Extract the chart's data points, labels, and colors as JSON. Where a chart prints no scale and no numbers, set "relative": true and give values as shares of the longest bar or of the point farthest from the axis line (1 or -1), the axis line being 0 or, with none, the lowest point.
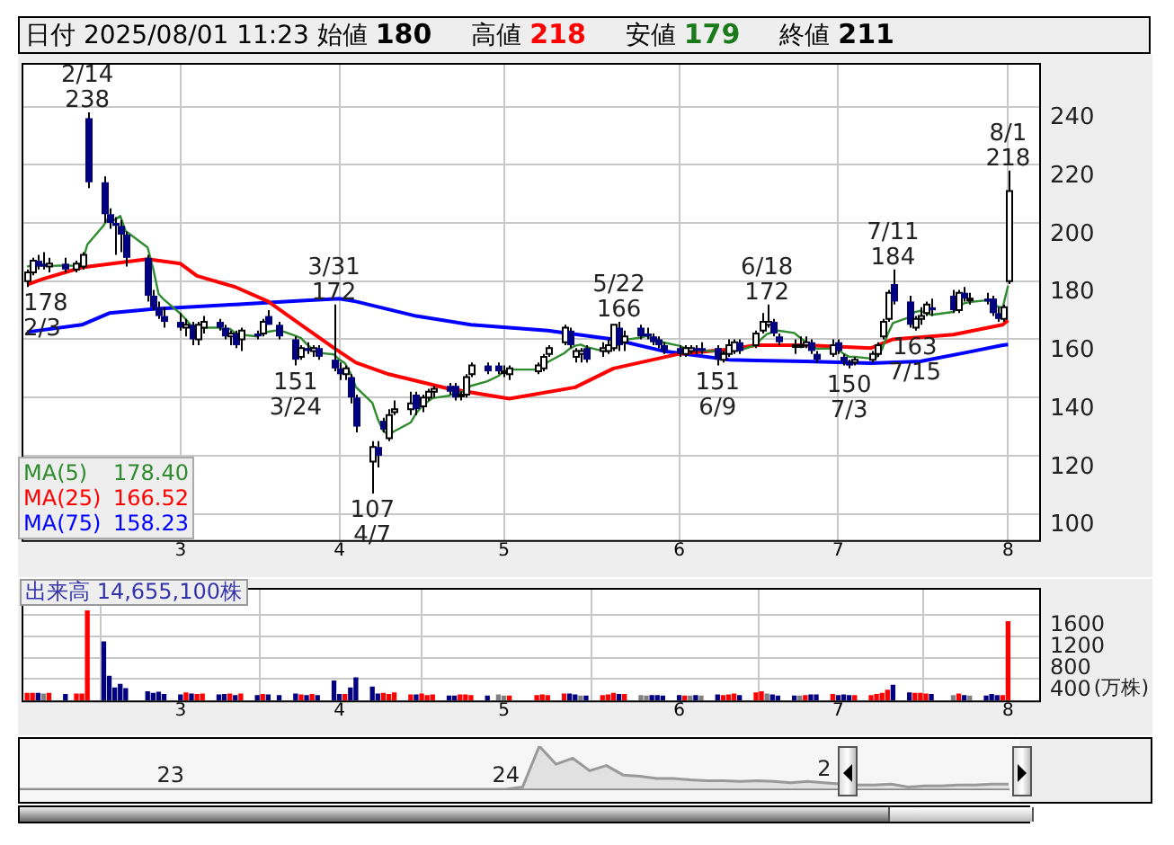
{
  "chart_data": [
    {
      "type": "candlestick",
      "title": "日付 2025/08/01 11:23",
      "annotations": [
        "始値 180",
        "高値 218",
        "安値 179",
        "終値 211",
        {
          "text": "178\n2/3",
          "x": "2025-02-03",
          "y": 178
        },
        {
          "text": "2/14\n238",
          "x": "2025-02-14",
          "y": 238
        },
        {
          "text": "151\n3/24",
          "x": "2025-03-24",
          "y": 151
        },
        {
          "text": "3/31\n172",
          "x": "2025-03-31",
          "y": 172
        },
        {
          "text": "107\n4/7",
          "x": "2025-04-07",
          "y": 107
        },
        {
          "text": "5/22\n166",
          "x": "2025-05-22",
          "y": 166
        },
        {
          "text": "151\n6/9",
          "x": "2025-06-09",
          "y": 151
        },
        {
          "text": "6/18\n172",
          "x": "2025-06-18",
          "y": 172
        },
        {
          "text": "150\n7/3",
          "x": "2025-07-03",
          "y": 150
        },
        {
          "text": "7/11\n184",
          "x": "2025-07-11",
          "y": 184
        },
        {
          "text": "163\n7/15",
          "x": "2025-07-15",
          "y": 163
        },
        {
          "text": "8/1\n218",
          "x": "2025-08-01",
          "y": 218
        }
      ],
      "x": [
        "2025-02-03",
        "2025-02-04",
        "2025-02-05",
        "2025-02-06",
        "2025-02-07",
        "2025-02-10",
        "2025-02-12",
        "2025-02-13",
        "2025-02-14",
        "2025-02-17",
        "2025-02-18",
        "2025-02-19",
        "2025-02-20",
        "2025-02-21",
        "2025-02-25",
        "2025-02-26",
        "2025-02-27",
        "2025-02-28",
        "2025-03-03",
        "2025-03-04",
        "2025-03-05",
        "2025-03-06",
        "2025-03-07",
        "2025-03-10",
        "2025-03-11",
        "2025-03-12",
        "2025-03-13",
        "2025-03-14",
        "2025-03-17",
        "2025-03-18",
        "2025-03-19",
        "2025-03-21",
        "2025-03-24",
        "2025-03-25",
        "2025-03-26",
        "2025-03-27",
        "2025-03-28",
        "2025-03-31",
        "2025-04-01",
        "2025-04-02",
        "2025-04-03",
        "2025-04-04",
        "2025-04-07",
        "2025-04-08",
        "2025-04-09",
        "2025-04-10",
        "2025-04-11",
        "2025-04-14",
        "2025-04-15",
        "2025-04-16",
        "2025-04-17",
        "2025-04-18",
        "2025-04-21",
        "2025-04-22",
        "2025-04-23",
        "2025-04-24",
        "2025-04-25",
        "2025-04-28",
        "2025-04-30",
        "2025-05-01",
        "2025-05-02",
        "2025-05-07",
        "2025-05-08",
        "2025-05-09",
        "2025-05-12",
        "2025-05-13",
        "2025-05-14",
        "2025-05-15",
        "2025-05-16",
        "2025-05-19",
        "2025-05-20",
        "2025-05-21",
        "2025-05-22",
        "2025-05-23",
        "2025-05-26",
        "2025-05-27",
        "2025-05-28",
        "2025-05-29",
        "2025-05-30",
        "2025-06-02",
        "2025-06-03",
        "2025-06-04",
        "2025-06-05",
        "2025-06-06",
        "2025-06-09",
        "2025-06-10",
        "2025-06-11",
        "2025-06-12",
        "2025-06-13",
        "2025-06-16",
        "2025-06-17",
        "2025-06-18",
        "2025-06-19",
        "2025-06-20",
        "2025-06-23",
        "2025-06-24",
        "2025-06-25",
        "2025-06-26",
        "2025-06-27",
        "2025-06-30",
        "2025-07-01",
        "2025-07-02",
        "2025-07-03",
        "2025-07-04",
        "2025-07-07",
        "2025-07-08",
        "2025-07-09",
        "2025-07-10",
        "2025-07-11",
        "2025-07-14",
        "2025-07-15",
        "2025-07-16",
        "2025-07-17",
        "2025-07-18",
        "2025-07-22",
        "2025-07-23",
        "2025-07-24",
        "2025-07-25",
        "2025-07-28",
        "2025-07-29",
        "2025-07-30",
        "2025-07-31",
        "2025-08-01"
      ],
      "ohlc": [
        [
          180,
          184,
          178,
          183
        ],
        [
          183,
          188,
          182,
          187
        ],
        [
          187,
          189,
          184,
          185
        ],
        [
          186,
          190,
          184,
          185
        ],
        [
          185,
          188,
          183,
          186
        ],
        [
          186,
          188,
          183,
          184
        ],
        [
          184,
          187,
          183,
          186
        ],
        [
          185,
          190,
          184,
          189
        ],
        [
          236,
          238,
          212,
          214
        ],
        [
          214,
          216,
          200,
          203
        ],
        [
          203,
          205,
          198,
          200
        ],
        [
          200,
          202,
          189,
          199
        ],
        [
          199,
          201,
          190,
          196
        ],
        [
          196,
          197,
          185,
          188
        ],
        [
          188,
          189,
          173,
          175
        ],
        [
          175,
          177,
          170,
          171
        ],
        [
          171,
          173,
          167,
          168
        ],
        [
          168,
          171,
          164,
          166
        ],
        [
          166,
          169,
          163,
          164
        ],
        [
          164,
          167,
          161,
          165
        ],
        [
          165,
          166,
          158,
          160
        ],
        [
          160,
          166,
          158,
          165
        ],
        [
          164,
          168,
          162,
          166
        ],
        [
          166,
          167,
          163,
          164
        ],
        [
          164,
          165,
          160,
          161
        ],
        [
          161,
          163,
          158,
          162
        ],
        [
          162,
          163,
          157,
          158
        ],
        [
          160,
          164,
          156,
          163
        ],
        [
          162,
          163,
          160,
          161
        ],
        [
          162,
          167,
          161,
          166
        ],
        [
          168,
          170,
          165,
          165
        ],
        [
          165,
          166,
          160,
          161
        ],
        [
          160,
          161,
          151,
          153
        ],
        [
          154,
          158,
          153,
          157
        ],
        [
          157,
          159,
          155,
          156
        ],
        [
          156,
          158,
          154,
          157
        ],
        [
          157,
          158,
          153,
          154
        ],
        [
          153,
          172,
          149,
          150
        ],
        [
          150,
          152,
          146,
          148
        ],
        [
          148,
          151,
          146,
          150
        ],
        [
          147,
          148,
          138,
          140
        ],
        [
          140,
          141,
          128,
          130
        ],
        [
          118,
          125,
          107,
          123
        ],
        [
          123,
          125,
          116,
          120
        ],
        [
          132,
          133,
          128,
          129
        ],
        [
          126,
          136,
          125,
          134
        ],
        [
          135,
          139,
          134,
          136
        ],
        [
          136,
          142,
          134,
          138
        ],
        [
          141,
          142,
          134,
          136
        ],
        [
          137,
          141,
          135,
          140
        ],
        [
          140,
          143,
          139,
          142
        ],
        [
          142,
          144,
          140,
          143
        ],
        [
          144,
          145,
          141,
          142
        ],
        [
          144,
          145,
          139,
          140
        ],
        [
          141,
          142,
          139,
          141
        ],
        [
          141,
          148,
          140,
          147
        ],
        [
          148,
          152,
          147,
          151
        ],
        [
          151,
          152,
          148,
          149
        ],
        [
          151,
          152,
          148,
          149
        ],
        [
          149,
          151,
          147,
          149
        ],
        [
          148,
          151,
          146,
          150
        ],
        [
          149,
          152,
          148,
          151
        ],
        [
          150,
          155,
          149,
          154
        ],
        [
          155,
          158,
          154,
          157
        ],
        [
          159,
          165,
          158,
          164
        ],
        [
          163,
          164,
          157,
          158
        ],
        [
          154,
          157,
          152,
          156
        ],
        [
          155,
          157,
          152,
          156
        ],
        [
          157,
          158,
          152,
          153
        ],
        [
          156,
          159,
          154,
          157
        ],
        [
          156,
          160,
          155,
          158
        ],
        [
          157,
          165,
          156,
          165
        ],
        [
          164,
          166,
          156,
          158
        ],
        [
          159,
          163,
          156,
          161
        ],
        [
          164,
          165,
          160,
          161
        ],
        [
          162,
          164,
          160,
          161
        ],
        [
          161,
          162,
          158,
          159
        ],
        [
          160,
          161,
          157,
          158
        ],
        [
          158,
          159,
          155,
          156
        ],
        [
          157,
          158,
          154,
          155
        ],
        [
          155,
          158,
          154,
          157
        ],
        [
          156,
          158,
          155,
          157
        ],
        [
          157,
          158,
          155,
          156
        ],
        [
          157,
          159,
          155,
          156
        ],
        [
          157,
          158,
          151,
          153
        ],
        [
          153,
          156,
          152,
          155
        ],
        [
          155,
          160,
          154,
          158
        ],
        [
          156,
          160,
          155,
          159
        ],
        [
          159,
          160,
          155,
          156
        ],
        [
          158,
          163,
          157,
          162
        ],
        [
          163,
          169,
          162,
          166
        ],
        [
          165,
          172,
          164,
          166
        ],
        [
          166,
          167,
          161,
          162
        ],
        [
          161,
          162,
          158,
          159
        ],
        [
          158,
          160,
          155,
          158
        ],
        [
          158,
          161,
          157,
          158
        ],
        [
          158,
          161,
          157,
          159
        ],
        [
          159,
          160,
          155,
          156
        ],
        [
          155,
          156,
          152,
          153
        ],
        [
          155,
          160,
          154,
          158
        ],
        [
          159,
          160,
          155,
          156
        ],
        [
          154,
          155,
          151,
          152
        ],
        [
          152,
          153,
          150,
          151
        ],
        [
          152,
          154,
          151,
          153
        ],
        [
          153,
          156,
          152,
          155
        ],
        [
          155,
          159,
          154,
          158
        ],
        [
          161,
          167,
          160,
          166
        ],
        [
          167,
          177,
          166,
          176
        ],
        [
          179,
          184,
          172,
          173
        ],
        [
          173,
          175,
          164,
          165
        ],
        [
          164,
          168,
          163,
          167
        ],
        [
          167,
          171,
          165,
          168
        ],
        [
          169,
          173,
          168,
          172
        ],
        [
          171,
          174,
          168,
          170
        ],
        [
          175,
          177,
          169,
          170
        ],
        [
          170,
          177,
          169,
          176
        ],
        [
          176,
          178,
          173,
          174
        ],
        [
          174,
          176,
          172,
          174
        ],
        [
          174,
          176,
          172,
          173
        ],
        [
          174,
          175,
          168,
          169
        ],
        [
          169,
          171,
          166,
          167
        ],
        [
          167,
          172,
          166,
          171
        ],
        [
          180,
          218,
          179,
          211
        ]
      ],
      "series": [
        {
          "name": "MA(5) 178.40",
          "type": "line",
          "color": "#2e8b2e",
          "values": [
            185,
            185.5,
            185.5,
            185.4,
            185.2,
            185.4,
            185.2,
            186,
            192.6,
            199.2,
            202.4,
            201,
            202.4,
            197.2,
            191.6,
            184.4,
            175.6,
            173.6,
            168.8,
            166.8,
            164.6,
            164,
            164,
            164,
            163.2,
            163.6,
            162.2,
            161.6,
            161,
            162,
            162.6,
            163.2,
            161.2,
            160.4,
            158.4,
            156.8,
            155.4,
            154.8,
            153,
            151.8,
            148.4,
            143.6,
            138.2,
            132.6,
            128.4,
            127.2,
            128.4,
            131.4,
            134.6,
            136.8,
            138.4,
            139.8,
            140.6,
            141.4,
            141.6,
            142.6,
            144,
            145.6,
            147.4,
            149,
            149.6,
            149.6,
            150.6,
            152.2,
            155.2,
            156.8,
            157.8,
            158.2,
            157.4,
            156,
            156,
            157.8,
            158.2,
            159.8,
            160.6,
            161.2,
            160,
            160,
            159,
            157.8,
            157,
            156.6,
            156.2,
            156.2,
            155.8,
            155.4,
            155.6,
            156.2,
            156.2,
            158,
            160.2,
            161.8,
            162.4,
            163,
            162.2,
            160.6,
            159.2,
            158,
            156.8,
            156.8,
            156.4,
            155,
            154,
            154,
            153.4,
            153.8,
            156.6,
            161.6,
            165.6,
            167.6,
            169.4,
            169.8,
            169,
            168.4,
            169.4,
            171.2,
            172.4,
            172.8,
            173.4,
            173.2,
            171.4,
            170.8,
            178.4
          ]
        },
        {
          "name": "MA(25) 166.52",
          "type": "line",
          "color": "#ff0000",
          "x": [
            "2025-02-03",
            "2025-02-06",
            "2025-02-13",
            "2025-02-25",
            "2025-03-03",
            "2025-03-06",
            "2025-03-13",
            "2025-03-19",
            "2025-03-25",
            "2025-03-31",
            "2025-04-04",
            "2025-04-10",
            "2025-04-21",
            "2025-05-02",
            "2025-05-14",
            "2025-05-21",
            "2025-06-02",
            "2025-06-11",
            "2025-06-16",
            "2025-06-25",
            "2025-07-07",
            "2025-07-11",
            "2025-07-22",
            "2025-07-31",
            "2025-08-01"
          ],
          "values": [
            178.8,
            180.8,
            184.7,
            187.6,
            186,
            181.8,
            178,
            173,
            165,
            157,
            152,
            148,
            143,
            139.6,
            143.5,
            150,
            155,
            156.5,
            158,
            158,
            157,
            160,
            161.6,
            165,
            166.5
          ]
        },
        {
          "name": "MA(75) 158.23",
          "type": "line",
          "color": "#0000ff",
          "x": [
            "2025-02-03",
            "2025-02-13",
            "2025-02-18",
            "2025-02-26",
            "2025-03-13",
            "2025-03-25",
            "2025-04-01",
            "2025-04-04",
            "2025-04-15",
            "2025-04-25",
            "2025-05-09",
            "2025-05-21",
            "2025-05-30",
            "2025-06-11",
            "2025-06-16",
            "2025-06-25",
            "2025-07-07",
            "2025-07-16",
            "2025-07-25",
            "2025-07-31",
            "2025-08-01"
          ],
          "values": [
            162.5,
            165,
            169,
            170.4,
            172,
            173.3,
            174,
            173,
            168,
            165,
            163,
            160,
            156,
            153,
            152.7,
            152.4,
            151.8,
            152.4,
            155.7,
            158,
            158.2
          ]
        }
      ],
      "xlim": [
        "2025-02-02",
        "2025-08-07"
      ],
      "xticks": [
        {
          "value": "2025-03-03",
          "label": "3"
        },
        {
          "value": "2025-04-01",
          "label": "4"
        },
        {
          "value": "2025-05-01",
          "label": "5"
        },
        {
          "value": "2025-06-02",
          "label": "6"
        },
        {
          "value": "2025-07-01",
          "label": "7"
        },
        {
          "value": "2025-08-01",
          "label": "8"
        }
      ],
      "ylim": [
        91,
        255
      ],
      "yticks": [
        100,
        120,
        140,
        160,
        180,
        200,
        220,
        240
      ],
      "grid": true,
      "legend": "bottom left"
    },
    {
      "type": "bar",
      "title": "出来高 14,655,100株",
      "ylabel": "(万株)",
      "x": [
        "2025-02-03",
        "2025-02-04",
        "2025-02-05",
        "2025-02-06",
        "2025-02-07",
        "2025-02-10",
        "2025-02-12",
        "2025-02-13",
        "2025-02-14",
        "2025-02-17",
        "2025-02-18",
        "2025-02-19",
        "2025-02-20",
        "2025-02-21",
        "2025-02-25",
        "2025-02-26",
        "2025-02-27",
        "2025-02-28",
        "2025-03-03",
        "2025-03-04",
        "2025-03-05",
        "2025-03-06",
        "2025-03-07",
        "2025-03-10",
        "2025-03-11",
        "2025-03-12",
        "2025-03-13",
        "2025-03-14",
        "2025-03-17",
        "2025-03-18",
        "2025-03-19",
        "2025-03-21",
        "2025-03-24",
        "2025-03-25",
        "2025-03-26",
        "2025-03-27",
        "2025-03-28",
        "2025-03-31",
        "2025-04-01",
        "2025-04-02",
        "2025-04-03",
        "2025-04-04",
        "2025-04-07",
        "2025-04-08",
        "2025-04-09",
        "2025-04-10",
        "2025-04-11",
        "2025-04-14",
        "2025-04-15",
        "2025-04-16",
        "2025-04-17",
        "2025-04-18",
        "2025-04-21",
        "2025-04-22",
        "2025-04-23",
        "2025-04-24",
        "2025-04-25",
        "2025-04-28",
        "2025-04-30",
        "2025-05-01",
        "2025-05-02",
        "2025-05-07",
        "2025-05-08",
        "2025-05-09",
        "2025-05-12",
        "2025-05-13",
        "2025-05-14",
        "2025-05-15",
        "2025-05-16",
        "2025-05-19",
        "2025-05-20",
        "2025-05-21",
        "2025-05-22",
        "2025-05-23",
        "2025-05-26",
        "2025-05-27",
        "2025-05-28",
        "2025-05-29",
        "2025-05-30",
        "2025-06-02",
        "2025-06-03",
        "2025-06-04",
        "2025-06-05",
        "2025-06-06",
        "2025-06-09",
        "2025-06-10",
        "2025-06-11",
        "2025-06-12",
        "2025-06-13",
        "2025-06-16",
        "2025-06-17",
        "2025-06-18",
        "2025-06-19",
        "2025-06-20",
        "2025-06-23",
        "2025-06-24",
        "2025-06-25",
        "2025-06-26",
        "2025-06-27",
        "2025-06-30",
        "2025-07-01",
        "2025-07-02",
        "2025-07-03",
        "2025-07-04",
        "2025-07-07",
        "2025-07-08",
        "2025-07-09",
        "2025-07-10",
        "2025-07-11",
        "2025-07-14",
        "2025-07-15",
        "2025-07-16",
        "2025-07-17",
        "2025-07-18",
        "2025-07-22",
        "2025-07-23",
        "2025-07-24",
        "2025-07-25",
        "2025-07-28",
        "2025-07-29",
        "2025-07-30",
        "2025-07-31",
        "2025-08-01"
      ],
      "values": [
        130,
        130,
        130,
        120,
        130,
        110,
        120,
        120,
        1670,
        1090,
        450,
        230,
        300,
        220,
        160,
        130,
        150,
        110,
        100,
        140,
        120,
        110,
        120,
        100,
        110,
        120,
        90,
        120,
        90,
        110,
        100,
        90,
        120,
        100,
        90,
        110,
        90,
        360,
        110,
        110,
        230,
        420,
        250,
        120,
        130,
        110,
        140,
        100,
        100,
        120,
        90,
        100,
        80,
        80,
        100,
        100,
        90,
        80,
        100,
        80,
        80,
        90,
        100,
        90,
        120,
        120,
        100,
        80,
        80,
        90,
        100,
        130,
        110,
        110,
        90,
        80,
        90,
        90,
        80,
        90,
        80,
        80,
        90,
        80,
        100,
        90,
        100,
        120,
        90,
        140,
        160,
        120,
        100,
        80,
        80,
        80,
        90,
        100,
        100,
        110,
        90,
        100,
        90,
        90,
        90,
        110,
        130,
        190,
        280,
        140,
        130,
        130,
        120,
        110,
        90,
        120,
        90,
        80,
        80,
        110,
        90,
        90,
        1470
      ],
      "colors": [
        "#ff0000",
        "#ff0000",
        "#000080",
        "#808080",
        "#ff0000",
        "#000080",
        "#ff0000",
        "#ff0000",
        "#ff0000",
        "#000080",
        "#000080",
        "#000080",
        "#000080",
        "#000080",
        "#000080",
        "#000080",
        "#000080",
        "#000080",
        "#000080",
        "#ff0000",
        "#000080",
        "#ff0000",
        "#ff0000",
        "#000080",
        "#000080",
        "#ff0000",
        "#000080",
        "#ff0000",
        "#000080",
        "#ff0000",
        "#000080",
        "#000080",
        "#000080",
        "#ff0000",
        "#000080",
        "#ff0000",
        "#000080",
        "#000080",
        "#000080",
        "#ff0000",
        "#000080",
        "#000080",
        "#000080",
        "#000080",
        "#ff0000",
        "#ff0000",
        "#ff0000",
        "#ff0000",
        "#000080",
        "#ff0000",
        "#ff0000",
        "#ff0000",
        "#000080",
        "#000080",
        "#ff0000",
        "#ff0000",
        "#ff0000",
        "#000080",
        "#808080",
        "#808080",
        "#ff0000",
        "#ff0000",
        "#ff0000",
        "#ff0000",
        "#ff0000",
        "#000080",
        "#000080",
        "#808080",
        "#000080",
        "#ff0000",
        "#ff0000",
        "#ff0000",
        "#000080",
        "#ff0000",
        "#808080",
        "#808080",
        "#000080",
        "#000080",
        "#000080",
        "#000080",
        "#ff0000",
        "#808080",
        "#000080",
        "#808080",
        "#000080",
        "#ff0000",
        "#ff0000",
        "#ff0000",
        "#000080",
        "#ff0000",
        "#ff0000",
        "#808080",
        "#000080",
        "#000080",
        "#000080",
        "#808080",
        "#ff0000",
        "#000080",
        "#000080",
        "#ff0000",
        "#000080",
        "#000080",
        "#000080",
        "#ff0000",
        "#ff0000",
        "#ff0000",
        "#ff0000",
        "#ff0000",
        "#000080",
        "#000080",
        "#ff0000",
        "#ff0000",
        "#ff0000",
        "#000080",
        "#808080",
        "#ff0000",
        "#000080",
        "#808080",
        "#000080",
        "#000080",
        "#000080",
        "#ff0000",
        "#ff0000"
      ],
      "xlim": [
        "2025-02-02",
        "2025-08-07"
      ],
      "xticks": [
        {
          "value": "2025-03-03",
          "label": "3"
        },
        {
          "value": "2025-04-01",
          "label": "4"
        },
        {
          "value": "2025-05-01",
          "label": "5"
        },
        {
          "value": "2025-06-02",
          "label": "6"
        },
        {
          "value": "2025-07-01",
          "label": "7"
        },
        {
          "value": "2025-08-01",
          "label": "8"
        }
      ],
      "ylim": [
        0,
        2100
      ],
      "yticks": [
        400,
        800,
        1200,
        1600
      ],
      "grid": true
    },
    {
      "type": "area",
      "relative": true,
      "color": "#999999",
      "categories": [
        null,
        null,
        null,
        null,
        null,
        null,
        null,
        null,
        null,
        "23",
        null,
        null,
        null,
        null,
        null,
        null,
        null,
        null,
        null,
        null,
        null,
        null,
        null,
        null,
        null,
        null,
        null,
        null,
        null,
        "24",
        null,
        null,
        null,
        null,
        null,
        null,
        null,
        null,
        null,
        null,
        null,
        null,
        null,
        null,
        null,
        null,
        null,
        null,
        "2",
        null,
        null,
        null,
        null,
        null,
        null,
        null,
        null,
        null,
        null,
        null
      ],
      "values": [
        0,
        0,
        0,
        0,
        0,
        0,
        0,
        0,
        0,
        0,
        0,
        0,
        0,
        0,
        0,
        0,
        0,
        0,
        0,
        0,
        0,
        0,
        0,
        0,
        0,
        0,
        0,
        0,
        0,
        0,
        0.05,
        1,
        0.58,
        0.72,
        0.43,
        0.55,
        0.33,
        0.3,
        0.25,
        0.25,
        0.22,
        0.2,
        0.2,
        0.18,
        0.2,
        0.18,
        0.15,
        0.18,
        0.15,
        0.12,
        0.1,
        0.1,
        0.12,
        0.05,
        0.08,
        0.08,
        0.1,
        0.1,
        0.12,
        0.12
      ]
    }
  ]
}
